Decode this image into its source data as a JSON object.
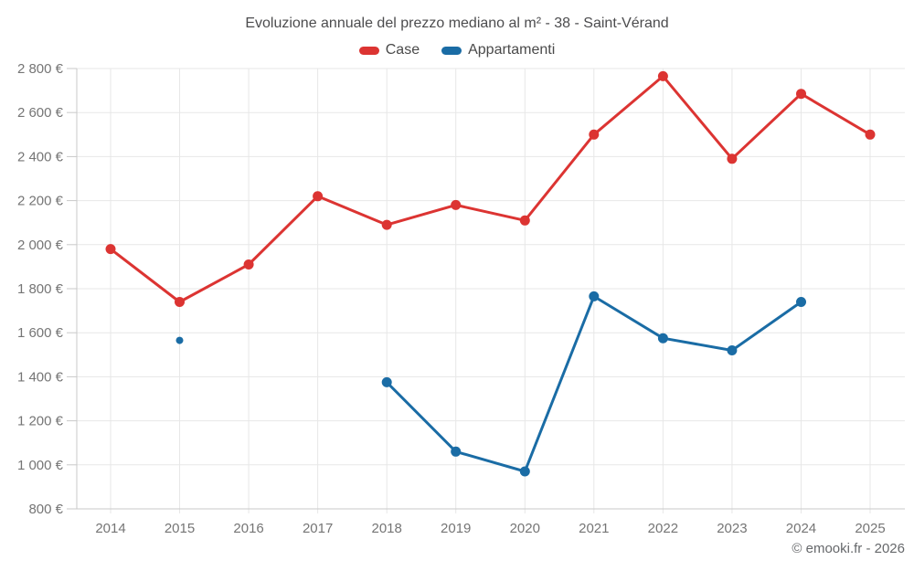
{
  "title": "Evoluzione annuale del prezzo mediano al m² - 38 - Saint-Vérand",
  "footer": "© emooki.fr - 2026",
  "colors": {
    "case_red": "#dc3432",
    "appartamenti_blue": "#1a6ca5",
    "gridline": "#e7e7e7",
    "axis": "#c9c9c9",
    "tick_label": "#757575"
  },
  "chart_data": {
    "type": "line",
    "title": "Evoluzione annuale del prezzo mediano al m² - 38 - Saint-Vérand",
    "categories": [
      "2014",
      "2015",
      "2016",
      "2017",
      "2018",
      "2019",
      "2020",
      "2021",
      "2022",
      "2023",
      "2024",
      "2025"
    ],
    "series": [
      {
        "name": "Case",
        "color": "#dc3432",
        "values": [
          1980,
          1740,
          1910,
          2220,
          2090,
          2180,
          2110,
          2500,
          2765,
          2390,
          2685,
          2500
        ]
      },
      {
        "name": "Appartamenti",
        "color": "#1a6ca5",
        "values": [
          null,
          1565,
          null,
          null,
          1375,
          1060,
          970,
          1765,
          1575,
          1520,
          1740,
          null
        ]
      }
    ],
    "xlabel": "",
    "ylabel": "",
    "ylim": [
      800,
      2800
    ],
    "ytick_step": 200,
    "ytick_suffix": " €",
    "grid": true,
    "legend_position": "top"
  }
}
